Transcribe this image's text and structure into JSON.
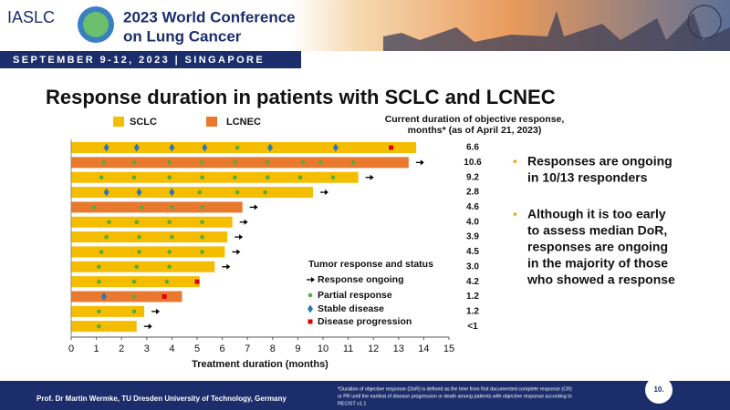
{
  "header": {
    "society": "IASLC",
    "conference": [
      "2023 World Conference",
      "on Lung Cancer"
    ],
    "dates": "SEPTEMBER 9-12, 2023 | SINGAPORE"
  },
  "title": "Response duration in patients with SCLC and LCNEC",
  "chart_data": {
    "type": "swimmer",
    "series": [
      {
        "name": "SCLC",
        "color": "#f5bd00"
      },
      {
        "name": "LCNEC",
        "color": "#e8792f"
      }
    ],
    "right_title": [
      "Current duration of objective response,",
      "months* (as of April 21, 2023)"
    ],
    "rows": [
      {
        "group": 0,
        "duration": 13.7,
        "ongoing": false,
        "stable_disease": [
          1.4,
          2.6,
          4.0,
          5.3,
          7.9,
          10.5
        ],
        "partial_response": [
          6.6
        ],
        "progression": [
          12.7
        ],
        "label": "6.6"
      },
      {
        "group": 1,
        "duration": 13.4,
        "ongoing": true,
        "partial_response": [
          1.3,
          2.5,
          3.9,
          5.2,
          6.5,
          7.8,
          9.2,
          9.9,
          11.2
        ],
        "label": "10.6"
      },
      {
        "group": 0,
        "duration": 11.4,
        "ongoing": true,
        "partial_response": [
          1.2,
          2.5,
          3.9,
          5.2,
          6.5,
          7.8,
          9.1,
          10.4
        ],
        "label": "9.2"
      },
      {
        "group": 0,
        "duration": 9.6,
        "ongoing": true,
        "stable_disease": [
          1.4,
          2.7,
          4.0
        ],
        "partial_response": [
          5.1,
          6.6,
          7.7
        ],
        "label": "2.8"
      },
      {
        "group": 1,
        "duration": 6.8,
        "ongoing": true,
        "partial_response": [
          0.9,
          2.8,
          4.0,
          5.2
        ],
        "label": "4.6"
      },
      {
        "group": 0,
        "duration": 6.4,
        "ongoing": true,
        "partial_response": [
          1.5,
          2.6,
          3.9,
          5.2
        ],
        "label": "4.0"
      },
      {
        "group": 0,
        "duration": 6.2,
        "ongoing": true,
        "partial_response": [
          1.4,
          2.7,
          4.0,
          5.2
        ],
        "label": "3.9"
      },
      {
        "group": 0,
        "duration": 6.1,
        "ongoing": true,
        "partial_response": [
          1.2,
          2.7,
          3.9,
          5.2
        ],
        "label": "4.5"
      },
      {
        "group": 0,
        "duration": 5.7,
        "ongoing": true,
        "partial_response": [
          1.1,
          2.6,
          3.9
        ],
        "label": "3.0"
      },
      {
        "group": 0,
        "duration": 5.1,
        "ongoing": false,
        "partial_response": [
          1.1,
          2.5,
          3.8
        ],
        "progression": [
          5.0
        ],
        "label": "4.2"
      },
      {
        "group": 1,
        "duration": 4.4,
        "ongoing": false,
        "stable_disease": [
          1.3
        ],
        "partial_response": [
          2.5
        ],
        "progression": [
          3.7
        ],
        "label": "1.2"
      },
      {
        "group": 0,
        "duration": 2.9,
        "ongoing": true,
        "partial_response": [
          1.1,
          2.5
        ],
        "label": "1.2"
      },
      {
        "group": 0,
        "duration": 2.6,
        "ongoing": true,
        "partial_response": [
          1.1
        ],
        "label": "<1"
      }
    ],
    "xlim": [
      0,
      15
    ],
    "xticks": [
      0,
      1,
      2,
      3,
      4,
      5,
      6,
      7,
      8,
      9,
      10,
      11,
      12,
      13,
      14,
      15
    ],
    "xlabel": "Treatment duration (months)",
    "marker_legend": {
      "title": "Tumor response and status",
      "ongoing": "Response ongoing",
      "partial_response": "Partial response",
      "stable_disease": "Stable disease",
      "progression": "Disease progression"
    },
    "marker_colors": {
      "partial_response": "#5aab3c",
      "stable_disease": "#2e75b6",
      "progression": "#e00000",
      "ongoing": "#000000"
    }
  },
  "bullets": [
    [
      "Responses are ongoing",
      "in 10/13 responders"
    ],
    [
      "Although it is too early",
      "to assess median DoR,",
      "responses are ongoing",
      "in the majority of those",
      "who showed a response"
    ]
  ],
  "footer": {
    "presenter": "Prof. Dr Martin Wermke, TU Dresden University of Technology, Germany",
    "footnote": [
      "*Duration of objective response (DoR) is defined as the time from first documented complete response (CR)",
      "or PR until the earliest of disease progression or death among patients with objective response according to",
      "RECIST v1.1"
    ],
    "page": "10."
  }
}
